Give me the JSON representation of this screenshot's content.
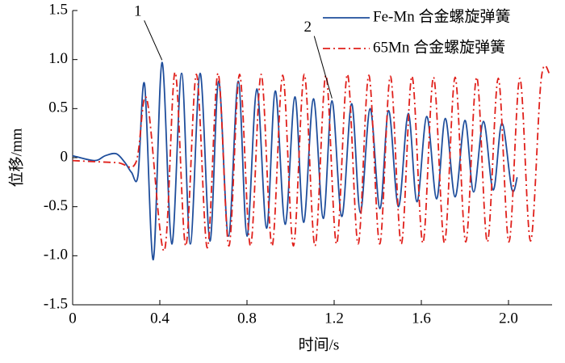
{
  "chart_data": {
    "type": "line",
    "xlabel": "时间/s",
    "ylabel": "位移/mm",
    "xlim": [
      0,
      2.2
    ],
    "ylim": [
      -1.5,
      1.5
    ],
    "xticks": [
      0,
      0.4,
      0.8,
      1.2,
      1.6,
      {
        "value": 2,
        "label": "2.0"
      }
    ],
    "yticks": [
      -1.5,
      {
        "value": -1,
        "label": "-1.0"
      },
      -0.5,
      0,
      0.5,
      {
        "value": 1,
        "label": "1.0"
      },
      1.5
    ],
    "legend": "upper right",
    "series": [
      {
        "name": "Fe-Mn 合金螺旋弹簧",
        "color": "#1f4e9c",
        "style": "solid",
        "x": [
          0,
          0.1,
          0.15,
          0.2,
          0.24,
          0.27,
          0.3,
          0.33,
          0.37,
          0.41,
          0.455,
          0.5,
          0.54,
          0.585,
          0.63,
          0.67,
          0.715,
          0.76,
          0.8,
          0.845,
          0.89,
          0.93,
          0.975,
          1.02,
          1.06,
          1.105,
          1.15,
          1.19,
          1.235,
          1.28,
          1.32,
          1.365,
          1.41,
          1.45,
          1.495,
          1.54,
          1.58,
          1.625,
          1.67,
          1.71,
          1.755,
          1.8,
          1.84,
          1.885,
          1.93,
          1.97,
          2.015,
          2.04
        ],
        "values": [
          0.02,
          -0.03,
          0.02,
          0.04,
          -0.05,
          -0.15,
          -0.18,
          0.75,
          -1.04,
          0.97,
          -0.88,
          0.86,
          -0.88,
          0.86,
          -0.85,
          0.78,
          -0.8,
          0.78,
          -0.8,
          0.7,
          -0.72,
          0.68,
          -0.68,
          0.62,
          -0.66,
          0.6,
          -0.62,
          0.58,
          -0.6,
          0.55,
          -0.56,
          0.5,
          -0.52,
          0.48,
          -0.5,
          0.45,
          -0.45,
          0.42,
          -0.42,
          0.4,
          -0.4,
          0.38,
          -0.35,
          0.37,
          -0.33,
          0.35,
          -0.32,
          -0.2
        ]
      },
      {
        "name": "65Mn 合金螺旋弹簧",
        "color": "#e0201b",
        "style": "dashdot",
        "x": [
          0,
          0.2,
          0.29,
          0.34,
          0.42,
          0.47,
          0.519,
          0.568,
          0.618,
          0.667,
          0.717,
          0.766,
          0.816,
          0.865,
          0.915,
          0.964,
          1.013,
          1.063,
          1.112,
          1.162,
          1.211,
          1.261,
          1.31,
          1.359,
          1.409,
          1.458,
          1.508,
          1.557,
          1.607,
          1.656,
          1.706,
          1.755,
          1.804,
          1.854,
          1.903,
          1.953,
          2.002,
          2.052,
          2.101,
          2.15,
          2.19
        ],
        "values": [
          -0.03,
          -0.05,
          -0.05,
          0.6,
          -0.95,
          0.87,
          -0.9,
          0.85,
          -0.92,
          0.86,
          -0.9,
          0.85,
          -0.9,
          0.85,
          -0.9,
          0.84,
          -0.9,
          0.85,
          -0.9,
          0.84,
          -0.88,
          0.85,
          -0.88,
          0.84,
          -0.88,
          0.83,
          -0.88,
          0.83,
          -0.87,
          0.82,
          -0.87,
          0.82,
          -0.86,
          0.82,
          -0.86,
          0.81,
          -0.86,
          0.81,
          -0.85,
          0.8,
          0.85
        ]
      }
    ],
    "annotations": [
      {
        "text": "1",
        "x": 0.41,
        "y": 0.97
      },
      {
        "text": "2",
        "x": 1.19,
        "y": 0.58
      }
    ]
  }
}
